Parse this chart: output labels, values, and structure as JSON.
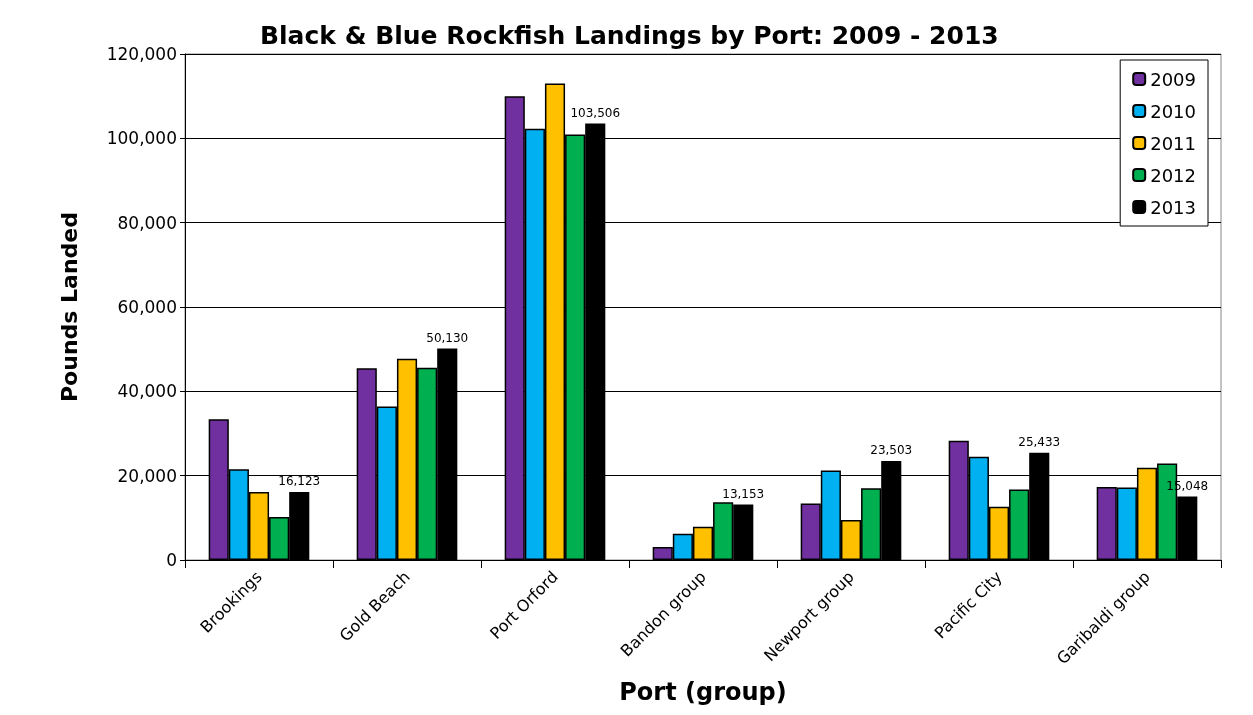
{
  "chart_data": {
    "type": "bar",
    "title": "Black & Blue Rockfish Landings by Port: 2009 - 2013",
    "xlabel": "Port (group)",
    "ylabel": "Pounds Landed",
    "categories": [
      "Brookings",
      "Gold Beach",
      "Port Orford",
      "Bandon group",
      "Newport group",
      "Pacific City",
      "Garibaldi group"
    ],
    "series": [
      {
        "name": "2009",
        "color": "#7030a0",
        "values": [
          33400,
          45500,
          110000,
          3100,
          13400,
          28300,
          17300
        ]
      },
      {
        "name": "2010",
        "color": "#00b0f0",
        "values": [
          21500,
          36400,
          102300,
          6200,
          21200,
          24500,
          17200
        ]
      },
      {
        "name": "2011",
        "color": "#ffc000",
        "values": [
          16100,
          47700,
          113000,
          7900,
          9500,
          12600,
          21900
        ]
      },
      {
        "name": "2012",
        "color": "#00b050",
        "values": [
          10200,
          45600,
          100900,
          13700,
          17000,
          16700,
          22900
        ]
      },
      {
        "name": "2013",
        "color": "#000000",
        "values": [
          16123,
          50130,
          103506,
          13153,
          23503,
          25433,
          15048
        ],
        "value_labels": [
          "16,123",
          "50,130",
          "103,506",
          "13,153",
          "23,503",
          "25,433",
          "15,048"
        ]
      }
    ],
    "ylim": [
      0,
      120000
    ],
    "yticks": [
      0,
      {
        "value": 20000,
        "label": "20,000"
      },
      {
        "value": 40000,
        "label": "40,000"
      },
      {
        "value": 60000,
        "label": "60,000"
      },
      {
        "value": 80000,
        "label": "80,000"
      },
      {
        "value": 100000,
        "label": "100,000"
      },
      {
        "value": 120000,
        "label": "120,000"
      }
    ],
    "grid": "y",
    "legend": "top right"
  }
}
